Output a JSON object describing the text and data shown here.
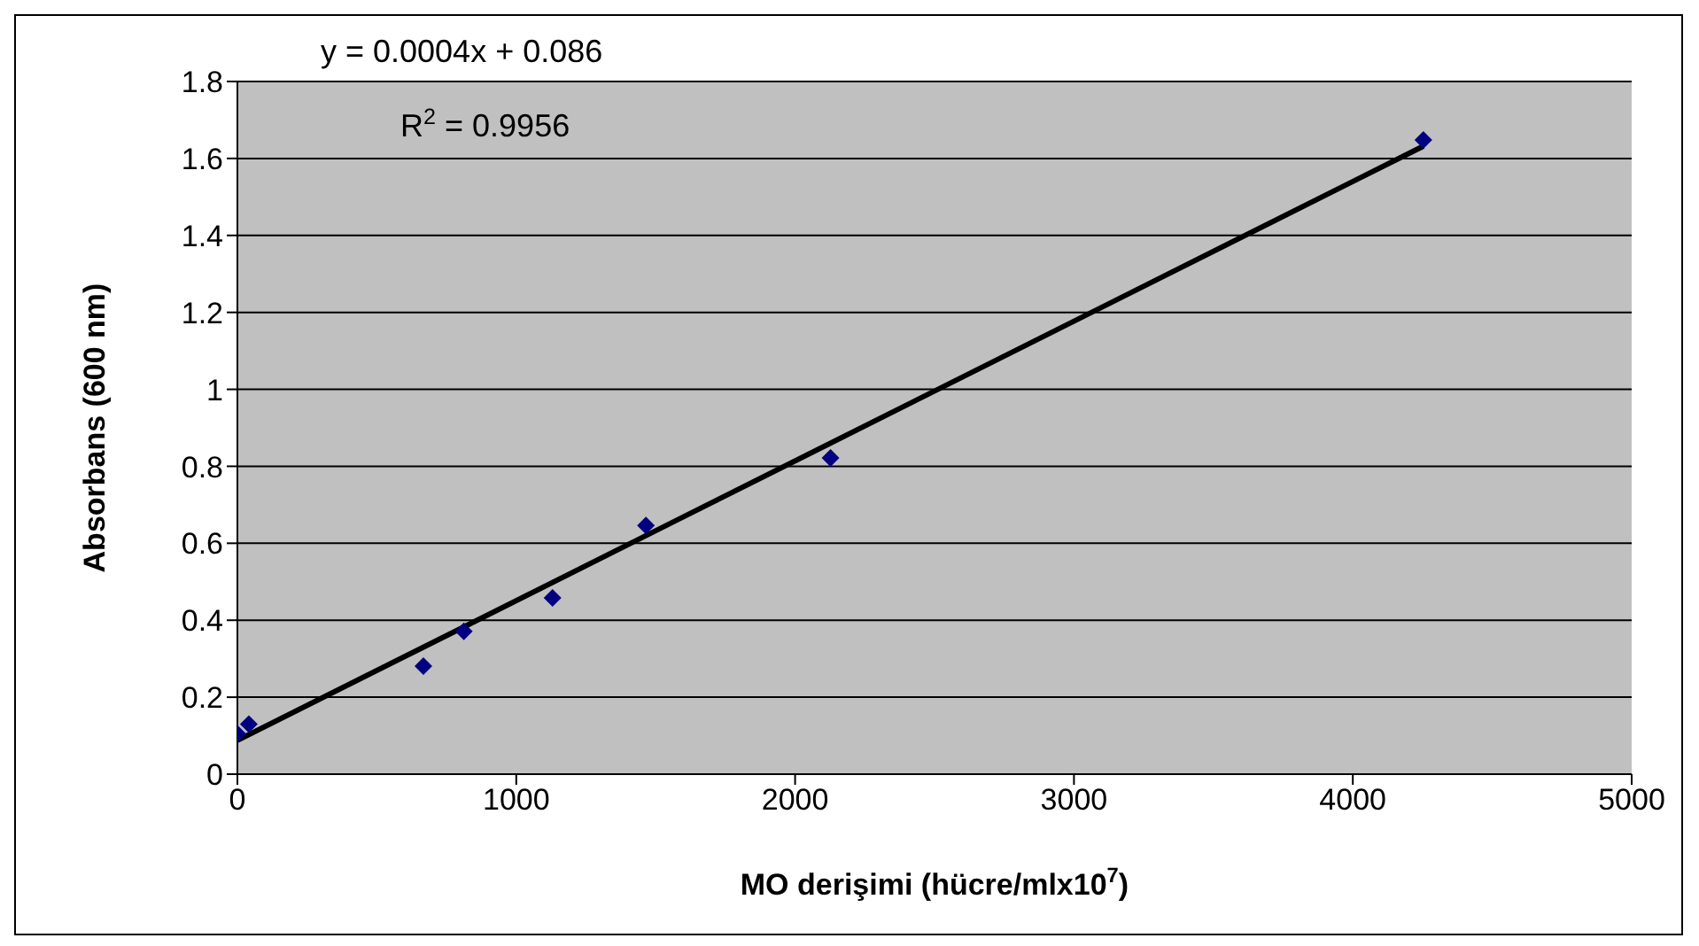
{
  "chart_data": {
    "type": "scatter",
    "xlabel": "MO derişimi (hücre/mlx10$^{7}$)",
    "ylabel": "Absorbans (600 nm)",
    "annotations": [
      "y = 0.0004x + 0.086",
      "R$^{2}$ = 0.9956"
    ],
    "xlim": [
      0,
      5000
    ],
    "xticks": [
      0,
      1000,
      2000,
      3000,
      4000,
      5000
    ],
    "ylim": [
      0,
      1.8
    ],
    "yticks": [
      0,
      0.2,
      0.4,
      0.6,
      0.8,
      1,
      1.2,
      1.4,
      1.6,
      1.8
    ],
    "grid": "y",
    "series": [
      {
        "color": "#000080",
        "marker": "diamond",
        "x": [
          0,
          41,
          667,
          812,
          1130,
          1465,
          2127,
          4253
        ],
        "values": [
          0.105,
          0.13,
          0.281,
          0.371,
          0.458,
          0.646,
          0.822,
          1.648
        ]
      },
      {
        "type": "line",
        "color": "#000000",
        "marker": "none",
        "line_style": "solid",
        "x": [
          0,
          4253
        ],
        "values": [
          0.088,
          1.632
        ]
      }
    ]
  }
}
